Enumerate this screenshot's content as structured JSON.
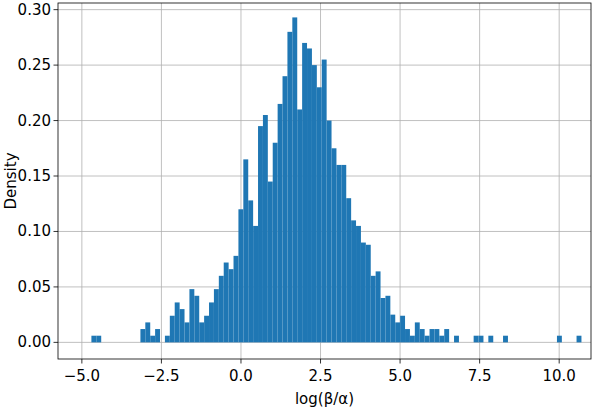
{
  "chart_data": {
    "type": "histogram",
    "x_label": "log(β/α)",
    "y_label": "Density",
    "color": "#1f77b4",
    "grid": true,
    "xlim": [
      -5.75,
      11.0
    ],
    "ylim": [
      -0.015,
      0.306
    ],
    "xticks": [
      {
        "value": -5,
        "label": "−5.0"
      },
      {
        "value": -2.5,
        "label": "−2.5"
      },
      {
        "value": 0,
        "label": "0.0"
      },
      {
        "value": 2.5,
        "label": "2.5"
      },
      {
        "value": 5,
        "label": "5.0"
      },
      {
        "value": 7.5,
        "label": "7.5"
      },
      {
        "value": 10,
        "label": "10.0"
      }
    ],
    "yticks": [
      {
        "value": 0,
        "label": "0.00"
      },
      {
        "value": 0.05,
        "label": "0.05"
      },
      {
        "value": 0.1,
        "label": "0.10"
      },
      {
        "value": 0.15,
        "label": "0.15"
      },
      {
        "value": 0.2,
        "label": "0.20"
      },
      {
        "value": 0.25,
        "label": "0.25"
      },
      {
        "value": 0.3,
        "label": "0.30"
      }
    ],
    "bins": [
      -4.7,
      -4.546,
      -4.392,
      -4.238,
      -4.084,
      -3.93,
      -3.776,
      -3.622,
      -3.468,
      -3.314,
      -3.16,
      -3.006,
      -2.852,
      -2.698,
      -2.544,
      -2.39,
      -2.236,
      -2.082,
      -1.928,
      -1.774,
      -1.62,
      -1.466,
      -1.312,
      -1.158,
      -1.004,
      -0.85,
      -0.696,
      -0.542,
      -0.388,
      -0.234,
      -0.08,
      0.074,
      0.228,
      0.382,
      0.536,
      0.69,
      0.844,
      0.998,
      1.152,
      1.306,
      1.46,
      1.614,
      1.768,
      1.922,
      2.076,
      2.23,
      2.384,
      2.538,
      2.692,
      2.846,
      3.0,
      3.154,
      3.308,
      3.462,
      3.616,
      3.77,
      3.924,
      4.078,
      4.232,
      4.386,
      4.54,
      4.694,
      4.848,
      5.002,
      5.156,
      5.31,
      5.464,
      5.618,
      5.772,
      5.926,
      6.08,
      6.234,
      6.388,
      6.542,
      6.696,
      6.85,
      7.004,
      7.158,
      7.312,
      7.466,
      7.62,
      7.774,
      7.928,
      8.082,
      8.236,
      8.39,
      8.544,
      8.698,
      8.852,
      9.006,
      9.16,
      9.314,
      9.468,
      9.622,
      9.776,
      9.93,
      10.084,
      10.238,
      10.392,
      10.546,
      10.7
    ],
    "values": [
      0.006,
      0.006,
      0,
      0,
      0,
      0,
      0,
      0,
      0,
      0,
      0.012,
      0.018,
      0.006,
      0.012,
      0,
      0.006,
      0.024,
      0.036,
      0.03,
      0.018,
      0.048,
      0.042,
      0.018,
      0.024,
      0.036,
      0.048,
      0.06,
      0.072,
      0.066,
      0.078,
      0.12,
      0.165,
      0.128,
      0.105,
      0.195,
      0.205,
      0.145,
      0.18,
      0.215,
      0.24,
      0.28,
      0.293,
      0.21,
      0.27,
      0.265,
      0.25,
      0.23,
      0.255,
      0.2,
      0.175,
      0.16,
      0.16,
      0.13,
      0.11,
      0.105,
      0.09,
      0.088,
      0.06,
      0.064,
      0.04,
      0.042,
      0.025,
      0.018,
      0.024,
      0.012,
      0.006,
      0.018,
      0.012,
      0.006,
      0.012,
      0.012,
      0.006,
      0.012,
      0,
      0.006,
      0,
      0,
      0,
      0.006,
      0.006,
      0,
      0.006,
      0,
      0,
      0.006,
      0,
      0,
      0,
      0,
      0,
      0,
      0,
      0,
      0,
      0,
      0.006,
      0,
      0,
      0,
      0.006
    ]
  }
}
